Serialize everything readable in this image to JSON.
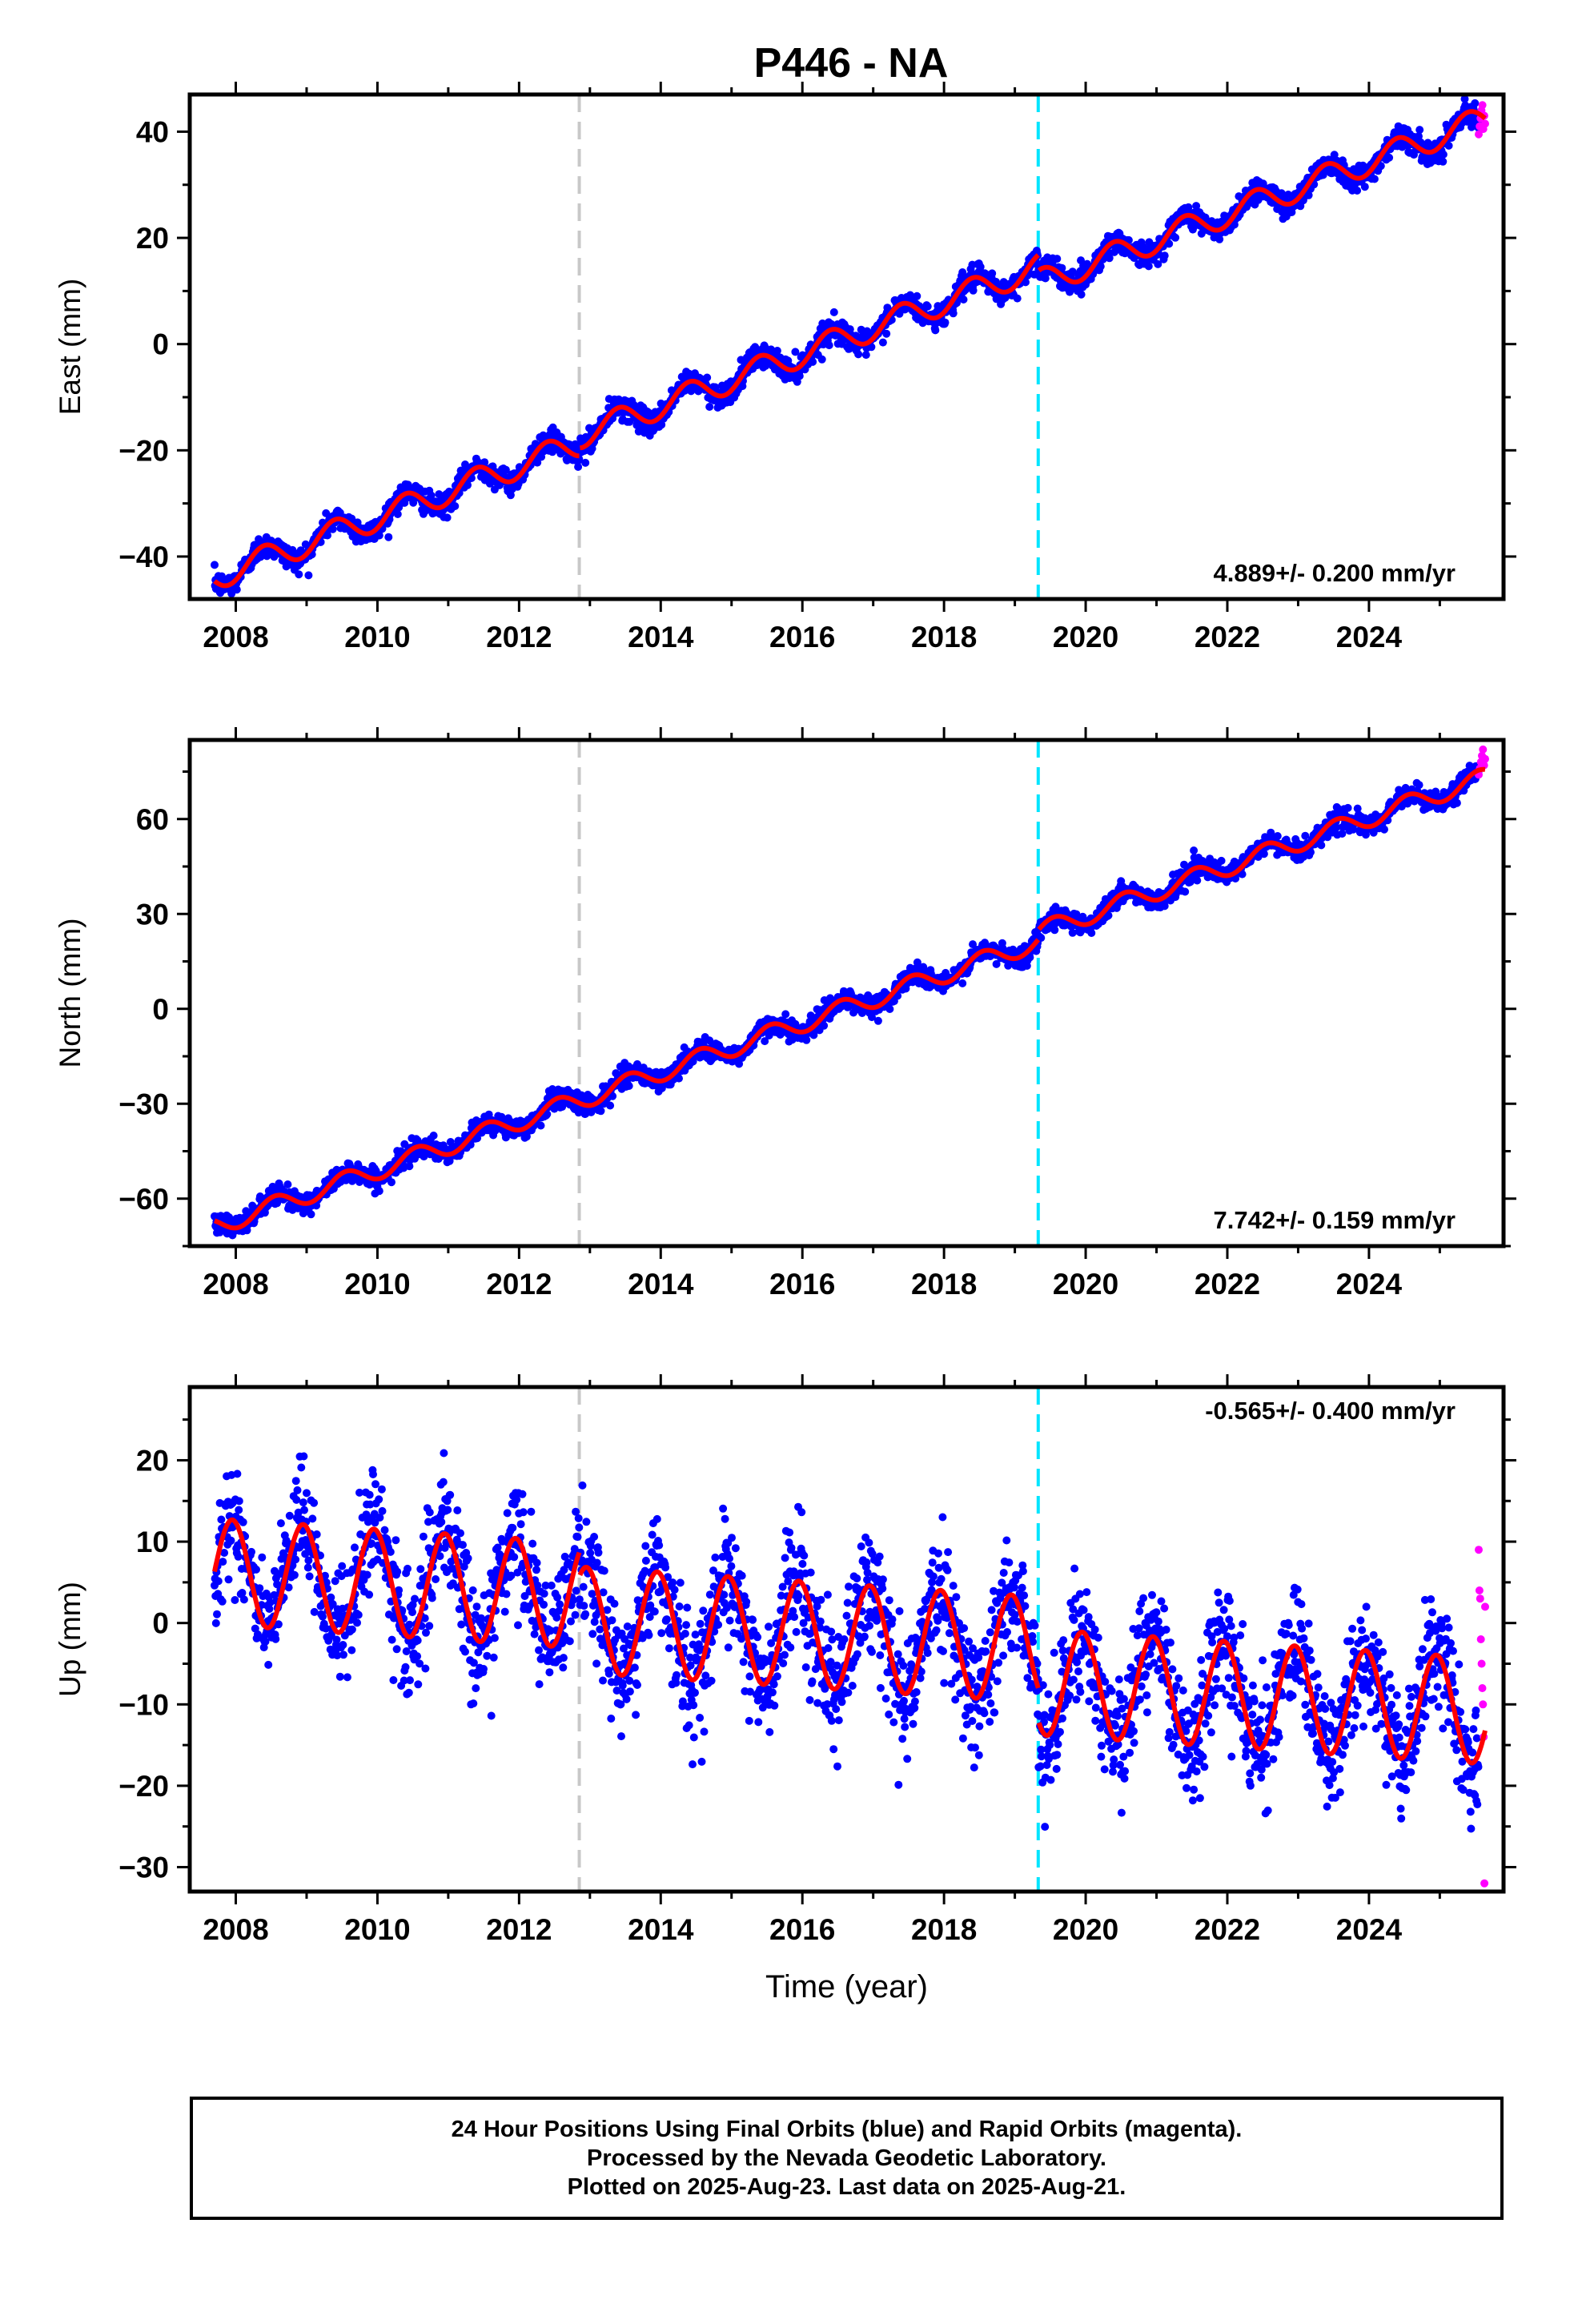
{
  "title": "P446 - NA",
  "colors": {
    "final_orbits": "#0000ff",
    "rapid_orbits": "#ff00ff",
    "model": "#ff0000",
    "event_1": "#c8c8c8",
    "event_2": "#00e5ff",
    "frame": "#000000"
  },
  "chart_data": [
    {
      "type": "scatter",
      "name": "east",
      "ylabel": "East (mm)",
      "xlabel": "",
      "xlim": [
        2007.35,
        2025.9
      ],
      "ylim": [
        -48,
        47
      ],
      "x_ticks": [
        2008,
        2010,
        2012,
        2014,
        2016,
        2018,
        2020,
        2022,
        2024
      ],
      "y_ticks": [
        -40,
        -20,
        0,
        20,
        40
      ],
      "event_lines": [
        2012.85,
        2019.33
      ],
      "rate_label": "4.889+/- 0.200 mm/yr",
      "rate_label_position": "bottom-right",
      "model": {
        "start_year": 2007.7,
        "end_year": 2025.64,
        "value_at_2018": 6.5,
        "rate_mm_yr": 4.889,
        "annual_amplitude": 2.5,
        "annual_phase_year": 0.15,
        "noise": 1.1
      },
      "offsets": [
        {
          "year": 2012.85,
          "value": 1.5
        },
        {
          "year": 2019.33,
          "value": -3.0
        }
      ],
      "rapid_points": {
        "start_year": 2025.55,
        "end_year": 2025.64,
        "values": [
          39.5,
          41.0,
          42.5,
          44.0,
          45.0,
          40.5,
          43.0,
          41.5
        ]
      }
    },
    {
      "type": "scatter",
      "name": "north",
      "ylabel": "North (mm)",
      "xlabel": "",
      "xlim": [
        2007.35,
        2025.9
      ],
      "ylim": [
        -75,
        85
      ],
      "x_ticks": [
        2008,
        2010,
        2012,
        2014,
        2016,
        2018,
        2020,
        2022,
        2024
      ],
      "y_ticks": [
        -60,
        -30,
        0,
        30,
        60
      ],
      "event_lines": [
        2012.85,
        2019.33
      ],
      "rate_label": "7.742+/- 0.159 mm/yr",
      "rate_label_position": "bottom-right",
      "model": {
        "start_year": 2007.7,
        "end_year": 2025.64,
        "value_at_2018": 11.0,
        "rate_mm_yr": 7.742,
        "annual_amplitude": 3.0,
        "annual_phase_year": 0.3,
        "noise": 1.6
      },
      "offsets": [
        {
          "year": 2019.33,
          "value": 3.0
        }
      ],
      "rapid_points": {
        "start_year": 2025.55,
        "end_year": 2025.64,
        "values": [
          74,
          76,
          78,
          80,
          82,
          77,
          79
        ]
      }
    },
    {
      "type": "scatter",
      "name": "up",
      "ylabel": "Up (mm)",
      "xlabel": "Time (year)",
      "xlim": [
        2007.35,
        2025.9
      ],
      "ylim": [
        -33,
        29
      ],
      "x_ticks": [
        2008,
        2010,
        2012,
        2014,
        2016,
        2018,
        2020,
        2022,
        2024
      ],
      "y_ticks": [
        -30,
        -20,
        -10,
        0,
        10,
        20
      ],
      "event_lines": [
        2012.85,
        2019.33
      ],
      "rate_label": "-0.565+/- 0.400 mm/yr",
      "rate_label_position": "top-right",
      "model": {
        "start_year": 2007.7,
        "end_year": 2025.64,
        "value_at_2018": 0.5,
        "rate_mm_yr": -0.565,
        "annual_amplitude": 6.5,
        "annual_phase_year": 0.7,
        "noise": 3.5
      },
      "offsets": [
        {
          "year": 2012.85,
          "value": -3.0
        },
        {
          "year": 2019.33,
          "value": -4.0
        }
      ],
      "rapid_points": {
        "start_year": 2025.55,
        "end_year": 2025.64,
        "values": [
          9,
          4,
          3,
          -2,
          -5,
          -8,
          -10,
          -14,
          -32,
          2
        ]
      }
    }
  ],
  "footer": {
    "line1": "24 Hour Positions Using Final Orbits (blue) and Rapid Orbits (magenta).",
    "line2": "Processed by the Nevada Geodetic Laboratory.",
    "line3": "Plotted on 2025-Aug-23. Last data on 2025-Aug-21."
  }
}
